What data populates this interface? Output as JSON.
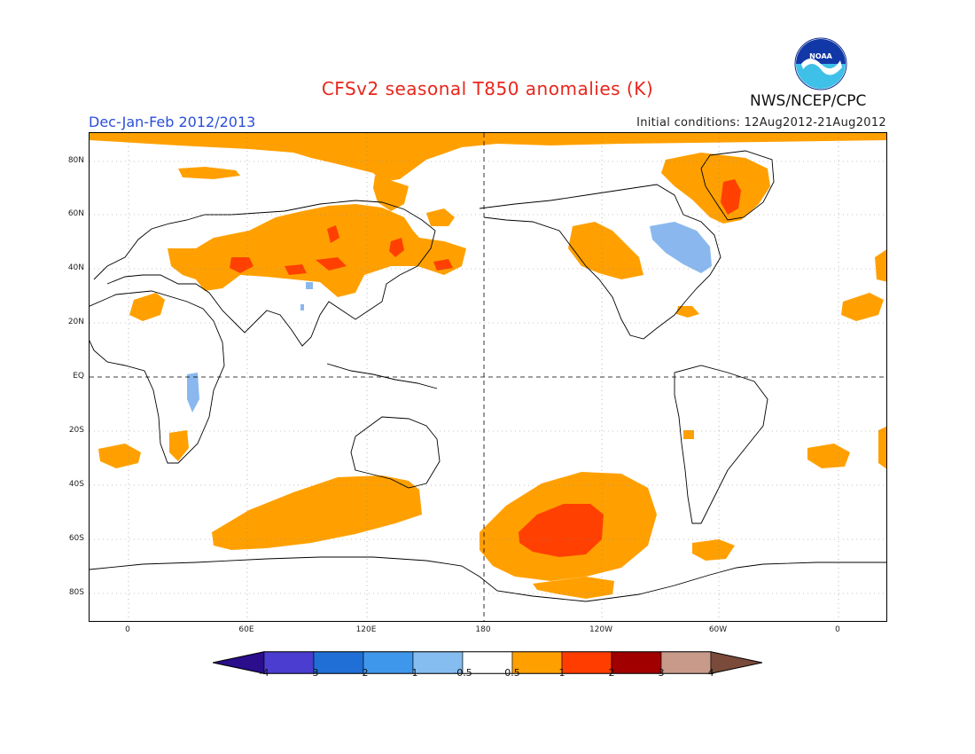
{
  "header": {
    "title": "CFSv2 seasonal T850 anomalies (K)",
    "period": "Dec-Jan-Feb 2012/2013",
    "initial_conditions": "Initial conditions: 12Aug2012-21Aug2012",
    "agency": "NWS/NCEP/CPC",
    "logo_text": "NOAA"
  },
  "map": {
    "lat_labels": [
      "80N",
      "60N",
      "40N",
      "20N",
      "EQ",
      "20S",
      "40S",
      "60S",
      "80S"
    ],
    "lon_labels": [
      "0",
      "60E",
      "120E",
      "180",
      "120W",
      "60W",
      "0"
    ],
    "projection": "cylindrical equidistant, centered on 180"
  },
  "colorbar": {
    "labels": [
      "-4",
      "-3",
      "-2",
      "-1",
      "-0.5",
      "0.5",
      "1",
      "2",
      "3",
      "4"
    ],
    "colors": [
      "#2a0e8c",
      "#4a3dd0",
      "#1f6fd6",
      "#3f97ec",
      "#85bdf0",
      "#ffffff",
      "#ffa000",
      "#ff3d00",
      "#a00000",
      "#c89a8a",
      "#7a4a3a"
    ]
  },
  "anomaly_colors": {
    "warm_0_5_1": "#ffa000",
    "warm_1_2": "#ff4000",
    "cool_0_5_1": "#8ab8ee",
    "cool_1_2": "#4a90e0"
  }
}
